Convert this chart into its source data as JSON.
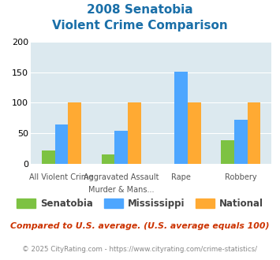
{
  "title_line1": "2008 Senatobia",
  "title_line2": "Violent Crime Comparison",
  "cat_labels_top": [
    "All Violent Crime",
    "Aggravated Assault",
    "Rape",
    "Robbery"
  ],
  "cat_labels_bot": [
    "",
    "Murder & Mans...",
    "",
    ""
  ],
  "senatobia": [
    22,
    15,
    0,
    39
  ],
  "mississippi": [
    64,
    54,
    151,
    72
  ],
  "national": [
    100,
    100,
    100,
    100
  ],
  "senatobia_color": "#7dc242",
  "mississippi_color": "#4da6ff",
  "national_color": "#ffaa33",
  "ylim": [
    0,
    200
  ],
  "yticks": [
    0,
    50,
    100,
    150,
    200
  ],
  "plot_bg": "#dce9ef",
  "title_color": "#1a6fa8",
  "footnote1": "Compared to U.S. average. (U.S. average equals 100)",
  "footnote2": "© 2025 CityRating.com - https://www.cityrating.com/crime-statistics/",
  "footnote1_color": "#cc3300",
  "footnote2_color": "#888888"
}
